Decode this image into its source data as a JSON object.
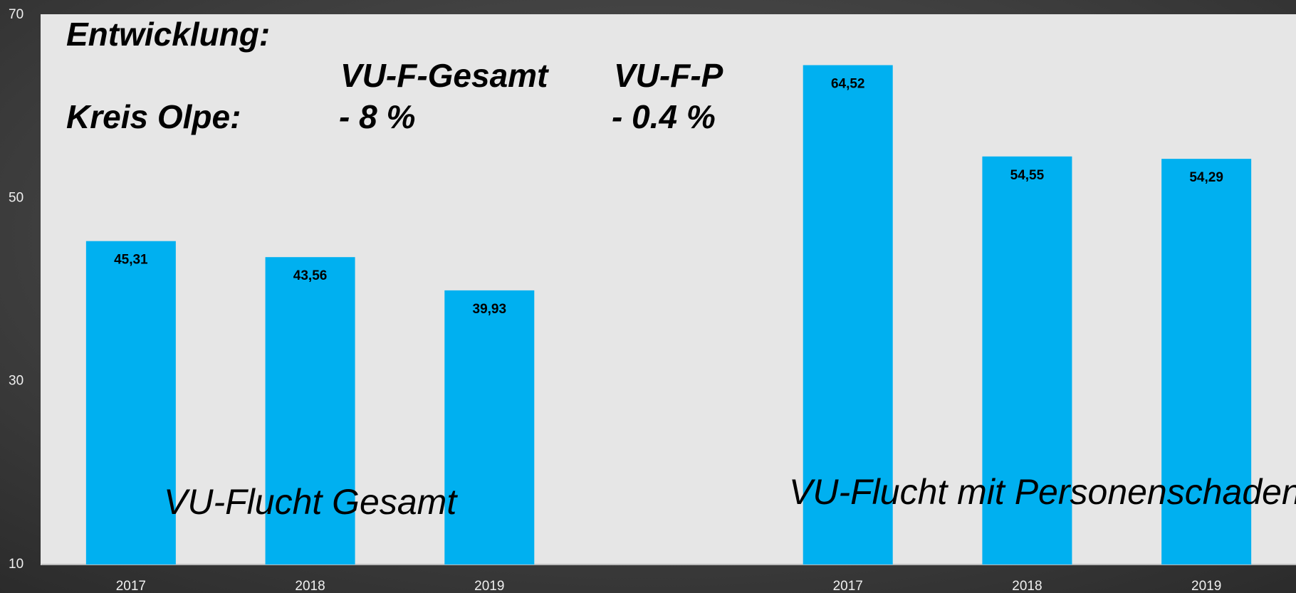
{
  "chart_data": {
    "type": "bar",
    "categories": [
      "2017",
      "2018",
      "2019",
      null,
      "2017",
      "2018",
      "2019"
    ],
    "values": [
      45.31,
      43.56,
      39.93,
      null,
      64.52,
      54.55,
      54.29
    ],
    "value_labels": [
      "45,31",
      "43,56",
      "39,93",
      null,
      "64,52",
      "54,55",
      "54,29"
    ],
    "color": "#00b0f0",
    "ylim": [
      10,
      70
    ],
    "yticks": [
      10,
      30,
      50,
      70
    ],
    "grid": false,
    "annotations": [
      "Entwicklung:",
      "VU-F-Gesamt",
      "VU-F-P",
      "Kreis Olpe:",
      "- 8 %",
      "- 0.4 %",
      "VU-Flucht Gesamt",
      "VU-Flucht mit Personenschaden"
    ]
  }
}
